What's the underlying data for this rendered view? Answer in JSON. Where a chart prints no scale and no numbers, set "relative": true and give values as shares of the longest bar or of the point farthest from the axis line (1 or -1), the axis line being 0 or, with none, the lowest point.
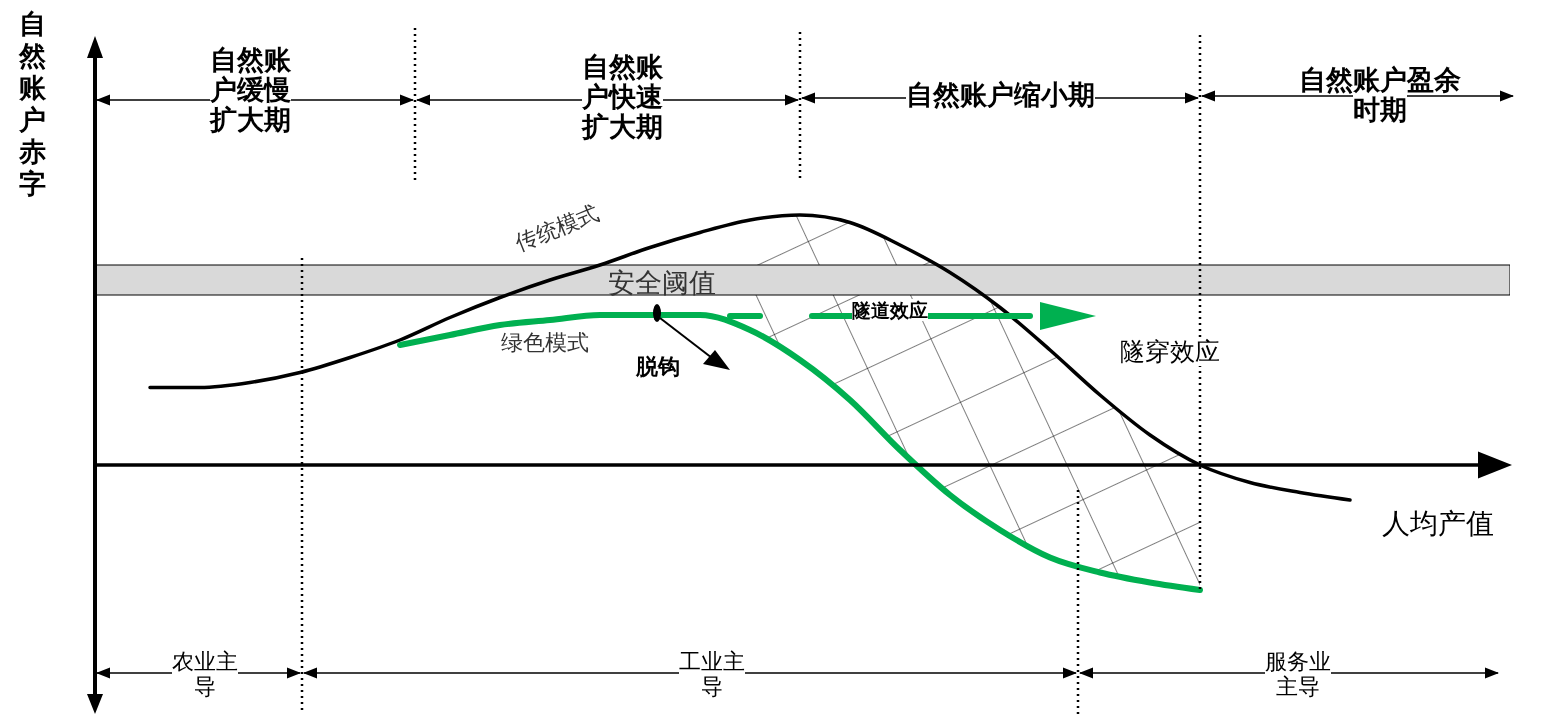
{
  "chart_data": {
    "type": "line",
    "relative": true,
    "ylabel": "自然账户赤字",
    "xlabel": "人均产值",
    "categories": [
      null,
      null,
      null,
      null,
      null,
      null,
      null,
      null,
      null,
      null,
      null,
      null,
      null,
      null,
      null,
      null,
      null,
      null,
      null,
      null,
      null,
      null,
      null,
      null,
      null
    ],
    "series": [
      {
        "name": "传统模式",
        "color": "#000000",
        "values": [
          0.31,
          0.31,
          0.33,
          0.37,
          0.43,
          0.5,
          0.59,
          0.67,
          0.74,
          0.8,
          0.87,
          0.93,
          0.98,
          1.0,
          0.97,
          0.88,
          0.77,
          0.63,
          0.46,
          0.28,
          0.12,
          0,
          -0.07,
          -0.11,
          -0.14
        ]
      },
      {
        "name": "绿色模式",
        "color": "#00b050",
        "values": [
          null,
          null,
          null,
          null,
          null,
          0.48,
          0.52,
          0.56,
          0.58,
          0.6,
          0.6,
          0.6,
          0.54,
          0.42,
          0.26,
          0.06,
          -0.12,
          -0.26,
          -0.37,
          -0.43,
          -0.47,
          -0.5,
          null,
          null,
          null
        ]
      }
    ],
    "bands": [
      {
        "axis": "y",
        "from": 0.68,
        "to": 0.8,
        "label": "安全阈值",
        "color": "#d9d9d9"
      }
    ],
    "annotations": [
      "自然账户缓慢扩大期",
      "自然账户快速扩大期",
      "自然账户缩小期",
      "自然账户盈余时期",
      "农业主导",
      "工业主导",
      "服务业主导",
      "脱钩",
      "隧道效应",
      "隧穿效应"
    ],
    "marker": "none",
    "line_style": "solid",
    "grid": false,
    "legend": false
  }
}
